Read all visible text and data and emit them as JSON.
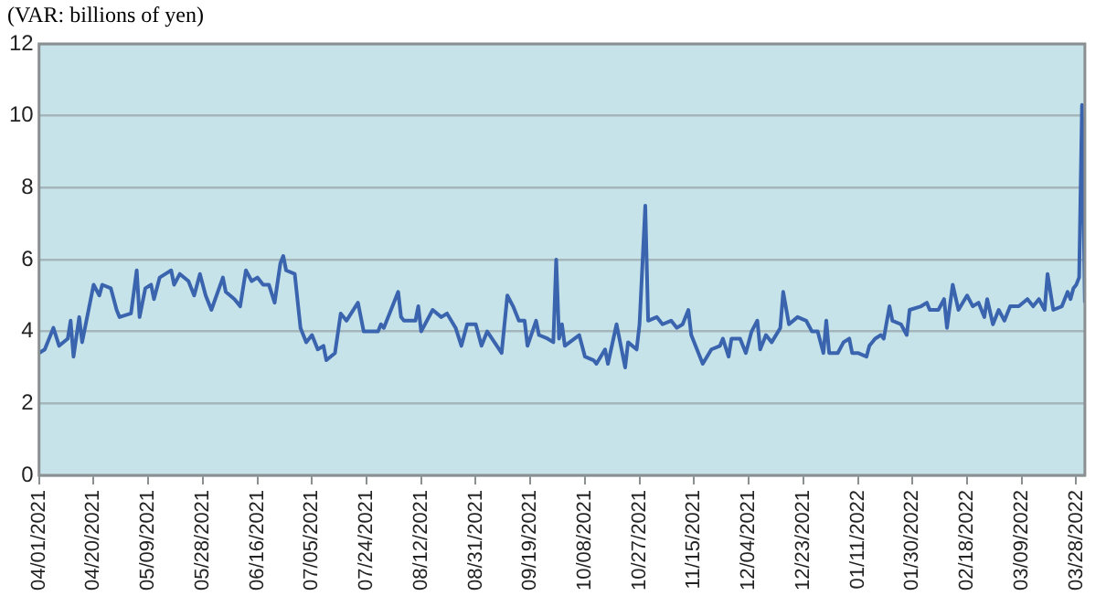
{
  "chart_data": {
    "type": "line",
    "ylabel": "(VAR: billions of yen)",
    "x": [
      "2021-04-01",
      "2021-04-03",
      "2021-04-06",
      "2021-04-08",
      "2021-04-11",
      "2021-04-12",
      "2021-04-13",
      "2021-04-15",
      "2021-04-16",
      "2021-04-20",
      "2021-04-22",
      "2021-04-23",
      "2021-04-26",
      "2021-04-28",
      "2021-04-29",
      "2021-05-03",
      "2021-05-05",
      "2021-05-06",
      "2021-05-08",
      "2021-05-10",
      "2021-05-11",
      "2021-05-13",
      "2021-05-15",
      "2021-05-17",
      "2021-05-18",
      "2021-05-20",
      "2021-05-23",
      "2021-05-25",
      "2021-05-27",
      "2021-05-29",
      "2021-05-31",
      "2021-06-04",
      "2021-06-05",
      "2021-06-08",
      "2021-06-10",
      "2021-06-12",
      "2021-06-14",
      "2021-06-16",
      "2021-06-18",
      "2021-06-20",
      "2021-06-22",
      "2021-06-24",
      "2021-06-25",
      "2021-06-26",
      "2021-06-29",
      "2021-07-01",
      "2021-07-03",
      "2021-07-05",
      "2021-07-07",
      "2021-07-09",
      "2021-07-10",
      "2021-07-13",
      "2021-07-15",
      "2021-07-17",
      "2021-07-21",
      "2021-07-23",
      "2021-07-28",
      "2021-07-29",
      "2021-07-30",
      "2021-08-04",
      "2021-08-05",
      "2021-08-06",
      "2021-08-10",
      "2021-08-11",
      "2021-08-12",
      "2021-08-16",
      "2021-08-19",
      "2021-08-21",
      "2021-08-24",
      "2021-08-26",
      "2021-08-28",
      "2021-08-31",
      "2021-09-02",
      "2021-09-04",
      "2021-09-09",
      "2021-09-11",
      "2021-09-13",
      "2021-09-15",
      "2021-09-17",
      "2021-09-18",
      "2021-09-21",
      "2021-09-22",
      "2021-09-25",
      "2021-09-27",
      "2021-09-28",
      "2021-09-29",
      "2021-09-30",
      "2021-10-01",
      "2021-10-06",
      "2021-10-08",
      "2021-10-11",
      "2021-10-12",
      "2021-10-15",
      "2021-10-16",
      "2021-10-19",
      "2021-10-22",
      "2021-10-23",
      "2021-10-26",
      "2021-10-27",
      "2021-10-29",
      "2021-10-30",
      "2021-11-02",
      "2021-11-04",
      "2021-11-07",
      "2021-11-09",
      "2021-11-11",
      "2021-11-13",
      "2021-11-14",
      "2021-11-16",
      "2021-11-18",
      "2021-11-21",
      "2021-11-24",
      "2021-11-25",
      "2021-11-27",
      "2021-11-28",
      "2021-12-01",
      "2021-12-03",
      "2021-12-05",
      "2021-12-07",
      "2021-12-08",
      "2021-12-10",
      "2021-12-12",
      "2021-12-15",
      "2021-12-16",
      "2021-12-18",
      "2021-12-21",
      "2021-12-24",
      "2021-12-26",
      "2021-12-28",
      "2021-12-30",
      "2021-12-31",
      "2022-01-01",
      "2022-01-04",
      "2022-01-06",
      "2022-01-08",
      "2022-01-09",
      "2022-01-11",
      "2022-01-14",
      "2022-01-15",
      "2022-01-17",
      "2022-01-19",
      "2022-01-20",
      "2022-01-22",
      "2022-01-23",
      "2022-01-26",
      "2022-01-28",
      "2022-01-29",
      "2022-02-02",
      "2022-02-04",
      "2022-02-05",
      "2022-02-08",
      "2022-02-10",
      "2022-02-11",
      "2022-02-13",
      "2022-02-15",
      "2022-02-18",
      "2022-02-20",
      "2022-02-22",
      "2022-02-24",
      "2022-02-25",
      "2022-02-27",
      "2022-03-01",
      "2022-03-03",
      "2022-03-05",
      "2022-03-08",
      "2022-03-11",
      "2022-03-13",
      "2022-03-15",
      "2022-03-17",
      "2022-03-18",
      "2022-03-20",
      "2022-03-23",
      "2022-03-25",
      "2022-03-26",
      "2022-03-27",
      "2022-03-28",
      "2022-03-29",
      "2022-03-30",
      "2022-03-31"
    ],
    "series": [
      {
        "color": "#3a64ad",
        "values": [
          3.4,
          3.5,
          4.1,
          3.6,
          3.8,
          4.3,
          3.3,
          4.4,
          3.7,
          5.3,
          5.0,
          5.3,
          5.2,
          4.6,
          4.4,
          4.5,
          5.7,
          4.4,
          5.2,
          5.3,
          4.9,
          5.5,
          5.6,
          5.7,
          5.3,
          5.6,
          5.4,
          5.0,
          5.6,
          5.0,
          4.6,
          5.5,
          5.1,
          4.9,
          4.7,
          5.7,
          5.4,
          5.5,
          5.3,
          5.3,
          4.8,
          5.9,
          6.1,
          5.7,
          5.6,
          4.1,
          3.7,
          3.9,
          3.5,
          3.6,
          3.2,
          3.4,
          4.5,
          4.3,
          4.8,
          4.0,
          4.0,
          4.2,
          4.1,
          5.1,
          4.4,
          4.3,
          4.3,
          4.7,
          4.0,
          4.6,
          4.4,
          4.5,
          4.1,
          3.6,
          4.2,
          4.2,
          3.6,
          4.0,
          3.4,
          5.0,
          4.7,
          4.3,
          4.3,
          3.6,
          4.3,
          3.9,
          3.8,
          3.7,
          6.0,
          3.8,
          4.2,
          3.6,
          3.9,
          3.3,
          3.2,
          3.1,
          3.5,
          3.1,
          4.2,
          3.0,
          3.7,
          3.5,
          4.2,
          7.5,
          4.3,
          4.4,
          4.2,
          4.3,
          4.1,
          4.2,
          4.6,
          3.9,
          3.5,
          3.1,
          3.5,
          3.6,
          3.8,
          3.3,
          3.8,
          3.8,
          3.4,
          4.0,
          4.3,
          3.5,
          3.9,
          3.7,
          4.1,
          5.1,
          4.2,
          4.4,
          4.3,
          4.0,
          4.0,
          3.4,
          4.3,
          3.4,
          3.4,
          3.7,
          3.8,
          3.4,
          3.4,
          3.3,
          3.6,
          3.8,
          3.9,
          3.8,
          4.7,
          4.3,
          4.2,
          3.9,
          4.6,
          4.7,
          4.8,
          4.6,
          4.6,
          4.9,
          4.1,
          5.3,
          4.6,
          5.0,
          4.7,
          4.8,
          4.4,
          4.9,
          4.2,
          4.6,
          4.3,
          4.7,
          4.7,
          4.9,
          4.7,
          4.9,
          4.6,
          5.6,
          4.6,
          4.7,
          5.1,
          4.9,
          5.2,
          5.3,
          5.5,
          10.3,
          4.8
        ]
      }
    ],
    "xlim": [
      "2021-04-01",
      "2022-03-31"
    ],
    "xticks": [
      {
        "value": "2021-04-01",
        "label": "04/01/2021"
      },
      {
        "value": "2021-04-20",
        "label": "04/20/2021"
      },
      {
        "value": "2021-05-09",
        "label": "05/09/2021"
      },
      {
        "value": "2021-05-28",
        "label": "05/28/2021"
      },
      {
        "value": "2021-06-16",
        "label": "06/16/2021"
      },
      {
        "value": "2021-07-05",
        "label": "07/05/2021"
      },
      {
        "value": "2021-07-24",
        "label": "07/24/2021"
      },
      {
        "value": "2021-08-12",
        "label": "08/12/2021"
      },
      {
        "value": "2021-08-31",
        "label": "08/31/2021"
      },
      {
        "value": "2021-09-19",
        "label": "09/19/2021"
      },
      {
        "value": "2021-10-08",
        "label": "10/08/2021"
      },
      {
        "value": "2021-10-27",
        "label": "10/27/2021"
      },
      {
        "value": "2021-11-15",
        "label": "11/15/2021"
      },
      {
        "value": "2021-12-04",
        "label": "12/04/2021"
      },
      {
        "value": "2021-12-23",
        "label": "12/23/2021"
      },
      {
        "value": "2022-01-11",
        "label": "01/11/2022"
      },
      {
        "value": "2022-01-30",
        "label": "01/30/2022"
      },
      {
        "value": "2022-02-18",
        "label": "02/18/2022"
      },
      {
        "value": "2022-03-09",
        "label": "03/09/2022"
      },
      {
        "value": "2022-03-28",
        "label": "03/28/2022"
      }
    ],
    "ylim": [
      0,
      12
    ],
    "yticks": [
      0,
      2,
      4,
      6,
      8,
      10,
      12
    ],
    "grid": "y",
    "legend": false,
    "marker": "none",
    "line_style": "solid"
  }
}
